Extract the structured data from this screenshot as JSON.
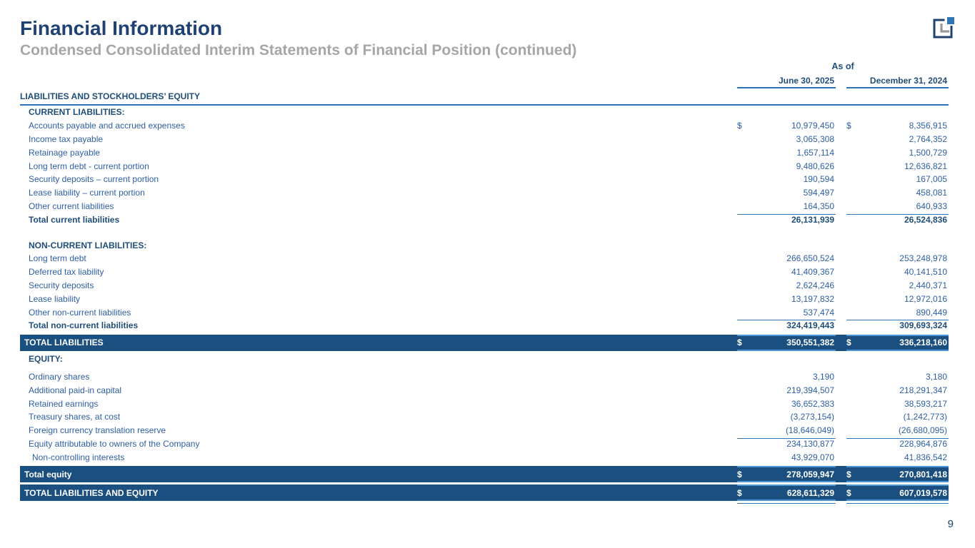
{
  "page": {
    "title": "Financial Information",
    "subtitle": "Condensed Consolidated Interim Statements of Financial Position (continued)",
    "page_number": "9"
  },
  "colors": {
    "band": "#1B4F80",
    "bandline": "#4C94D4",
    "rule": "#2E75B6",
    "text": "#2D5FA5",
    "head": "#1F4E79",
    "title": "#1F4273",
    "gray": "#A6A6A6"
  },
  "icons": {
    "logo": "company-logo-icon"
  },
  "table": {
    "as_of_label": "As of",
    "col1_header": "June 30, 2025",
    "col2_header": "December 31, 2024",
    "section_header": "LIABILITIES AND STOCKHOLDERS’ EQUITY",
    "rows": [
      {
        "type": "section",
        "label": "CURRENT LIABILITIES:"
      },
      {
        "type": "item",
        "label": "Accounts payable and accrued expenses",
        "d1": "$",
        "v1": "10,979,450",
        "d2": "$",
        "v2": "8,356,915"
      },
      {
        "type": "item",
        "label": "Income tax payable",
        "v1": "3,065,308",
        "v2": "2,764,352"
      },
      {
        "type": "item",
        "label": "Retainage payable",
        "v1": "1,657,114",
        "v2": "1,500,729"
      },
      {
        "type": "item",
        "label": "Long term debt - current portion",
        "v1": "9,480,626",
        "v2": "12,636,821"
      },
      {
        "type": "item",
        "label": "Security deposits – current portion",
        "v1": "190,594",
        "v2": "167,005"
      },
      {
        "type": "item",
        "label": "Lease liability – current portion",
        "v1": "594,497",
        "v2": "458,081"
      },
      {
        "type": "item",
        "label": "Other current liabilities",
        "v1": "164,350",
        "v2": "640,933"
      },
      {
        "type": "total",
        "rule_top": true,
        "label": "Total current liabilities",
        "v1": "26,131,939",
        "v2": "26,524,836"
      },
      {
        "type": "spacer"
      },
      {
        "type": "section",
        "label": "NON-CURRENT LIABILITIES:"
      },
      {
        "type": "item",
        "label": "Long term debt",
        "v1": "266,650,524",
        "v2": "253,248,978"
      },
      {
        "type": "item",
        "label": "Deferred tax liability",
        "v1": "41,409,367",
        "v2": "40,141,510"
      },
      {
        "type": "item",
        "label": "Security deposits",
        "v1": "2,624,246",
        "v2": "2,440,371"
      },
      {
        "type": "item",
        "label": "Lease liability",
        "v1": "13,197,832",
        "v2": "12,972,016"
      },
      {
        "type": "item",
        "label": "Other non-current liabilities",
        "v1": "537,474",
        "v2": "890,449"
      },
      {
        "type": "total",
        "rule_top": true,
        "label": "Total non-current liabilities",
        "v1": "324,419,443",
        "v2": "309,693,324"
      },
      {
        "type": "band",
        "label": "TOTAL LIABILITIES",
        "d1": "$",
        "v1": "350,551,382",
        "d2": "$",
        "v2": "336,218,160"
      },
      {
        "type": "section",
        "label": "EQUITY:"
      },
      {
        "type": "spacer-sm"
      },
      {
        "type": "item",
        "label": "Ordinary shares",
        "v1": "3,190",
        "v2": "3,180"
      },
      {
        "type": "item",
        "label": "Additional paid-in capital",
        "v1": "219,394,507",
        "v2": "218,291,347"
      },
      {
        "type": "item",
        "label": "Retained earnings",
        "v1": "36,652,383",
        "v2": "38,593,217"
      },
      {
        "type": "item",
        "label": "Treasury shares, at cost",
        "v1": "(3,273,154)",
        "v2": "(1,242,773)"
      },
      {
        "type": "item",
        "label": "Foreign currency translation reserve",
        "v1": "(18,646,049)",
        "v2": "(26,680,095)"
      },
      {
        "type": "item",
        "rule_top": true,
        "label": "Equity attributable to owners of the Company",
        "v1": "234,130,877",
        "v2": "228,964,876"
      },
      {
        "type": "item",
        "indent": 2,
        "label": "Non-controlling interests",
        "v1": "43,929,070",
        "v2": "41,836,542"
      },
      {
        "type": "band",
        "label": "Total equity",
        "d1": "$",
        "v1": "278,059,947",
        "d2": "$",
        "v2": "270,801,418"
      },
      {
        "type": "band",
        "label": "TOTAL LIABILITIES AND EQUITY",
        "d1": "$",
        "v1": "628,611,329",
        "d2": "$",
        "v2": "607,019,578"
      },
      {
        "type": "dblrule"
      }
    ]
  }
}
